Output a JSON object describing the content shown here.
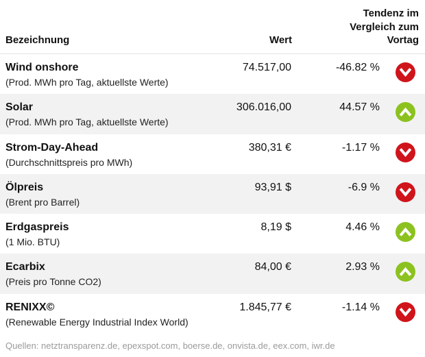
{
  "header": {
    "col_name": "Bezeichnung",
    "col_value": "Wert",
    "col_trend_line1": "Tendenz im",
    "col_trend_line2": "Vergleich zum",
    "col_trend_line3": "Vortag"
  },
  "rows": [
    {
      "name": "Wind onshore",
      "desc": "(Prod. MWh pro Tag, aktuellste Werte)",
      "value": "74.517,00",
      "pct": "-46.82 %",
      "trend": "down-icon"
    },
    {
      "name": "Solar",
      "desc": "(Prod. MWh pro Tag, aktuellste Werte)",
      "value": "306.016,00",
      "pct": "44.57 %",
      "trend": "up-icon"
    },
    {
      "name": "Strom-Day-Ahead",
      "desc": "(Durchschnittspreis pro MWh)",
      "value": "380,31 €",
      "pct": "-1.17 %",
      "trend": "down-icon"
    },
    {
      "name": "Ölpreis",
      "desc": "(Brent pro Barrel)",
      "value": "93,91 $",
      "pct": "-6.9 %",
      "trend": "down-icon"
    },
    {
      "name": "Erdgaspreis",
      "desc": "(1 Mio. BTU)",
      "value": "8,19 $",
      "pct": "4.46 %",
      "trend": "up-icon"
    },
    {
      "name": "Ecarbix",
      "desc": "(Preis pro Tonne CO2)",
      "value": "84,00 €",
      "pct": "2.93 %",
      "trend": "up-icon"
    },
    {
      "name": "RENIXX©",
      "desc": "(Renewable Energy Industrial Index World)",
      "value": "1.845,77 €",
      "pct": "-1.14 %",
      "trend": "down-icon"
    }
  ],
  "colors": {
    "down": "#d0141b",
    "up": "#8cc21f",
    "row_alt": "#f2f2f2"
  },
  "footer": "Quellen: netztransparenz.de, epexspot.com, boerse.de, onvista.de, eex.com, iwr.de"
}
